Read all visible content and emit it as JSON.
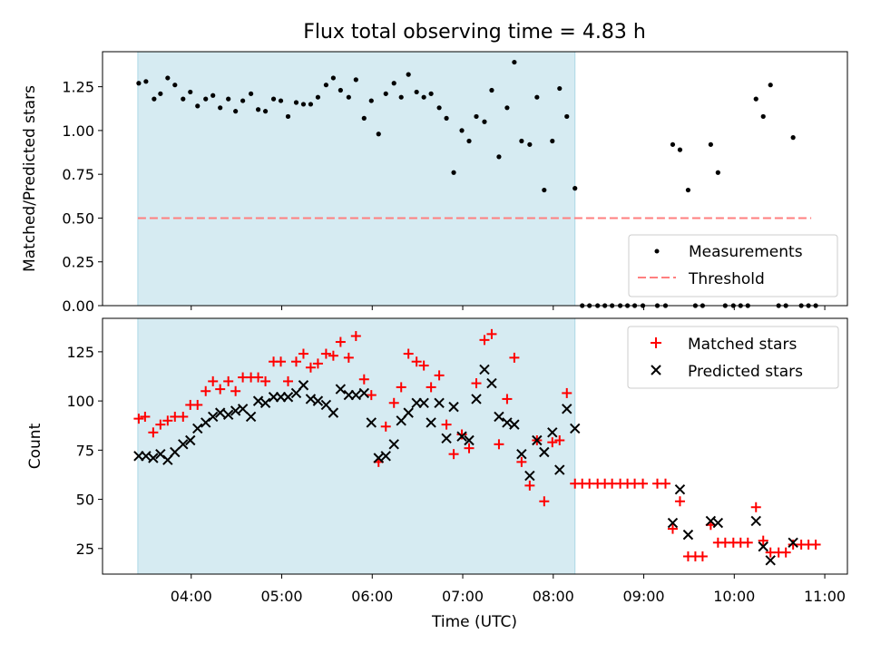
{
  "figure": {
    "title": "Flux total observing time = 4.83 h",
    "xlabel": "Time (UTC)",
    "x_ticks": [
      {
        "value": 4,
        "label": "04:00"
      },
      {
        "value": 5,
        "label": "05:00"
      },
      {
        "value": 6,
        "label": "06:00"
      },
      {
        "value": 7,
        "label": "07:00"
      },
      {
        "value": 8,
        "label": "08:00"
      },
      {
        "value": 9,
        "label": "09:00"
      },
      {
        "value": 10,
        "label": "10:00"
      },
      {
        "value": 11,
        "label": "11:00"
      }
    ],
    "colors": {
      "shade": "#add8e6",
      "threshold": "#ff7f7f",
      "matched": "#ff0000",
      "predicted": "#000000",
      "measurements": "#000000"
    }
  },
  "chart_data": [
    {
      "type": "scatter",
      "panel": "top",
      "ylabel": "Matched/Predicted stars",
      "xlim": [
        3.02,
        11.25
      ],
      "ylim": [
        0,
        1.45
      ],
      "y_ticks": [
        "0.00",
        "0.25",
        "0.50",
        "0.75",
        "1.00",
        "1.25"
      ],
      "shaded_span": [
        3.41,
        8.24
      ],
      "threshold": {
        "value": 0.5,
        "x_range": [
          3.41,
          10.85
        ]
      },
      "legend": {
        "position": "lower-right",
        "entries": [
          "Measurements",
          "Threshold"
        ]
      },
      "series": [
        {
          "name": "Measurements",
          "marker": "dot",
          "points": [
            [
              3.42,
              1.27
            ],
            [
              3.5,
              1.28
            ],
            [
              3.59,
              1.18
            ],
            [
              3.66,
              1.21
            ],
            [
              3.74,
              1.3
            ],
            [
              3.82,
              1.26
            ],
            [
              3.91,
              1.18
            ],
            [
              3.99,
              1.22
            ],
            [
              4.07,
              1.14
            ],
            [
              4.16,
              1.18
            ],
            [
              4.24,
              1.2
            ],
            [
              4.32,
              1.13
            ],
            [
              4.41,
              1.18
            ],
            [
              4.49,
              1.11
            ],
            [
              4.57,
              1.17
            ],
            [
              4.66,
              1.21
            ],
            [
              4.74,
              1.12
            ],
            [
              4.82,
              1.11
            ],
            [
              4.91,
              1.18
            ],
            [
              4.99,
              1.17
            ],
            [
              5.07,
              1.08
            ],
            [
              5.16,
              1.16
            ],
            [
              5.24,
              1.15
            ],
            [
              5.32,
              1.15
            ],
            [
              5.4,
              1.19
            ],
            [
              5.49,
              1.26
            ],
            [
              5.57,
              1.3
            ],
            [
              5.65,
              1.23
            ],
            [
              5.74,
              1.19
            ],
            [
              5.82,
              1.29
            ],
            [
              5.91,
              1.07
            ],
            [
              5.99,
              1.17
            ],
            [
              6.07,
              0.98
            ],
            [
              6.15,
              1.21
            ],
            [
              6.24,
              1.27
            ],
            [
              6.32,
              1.19
            ],
            [
              6.4,
              1.32
            ],
            [
              6.49,
              1.22
            ],
            [
              6.57,
              1.19
            ],
            [
              6.65,
              1.21
            ],
            [
              6.74,
              1.13
            ],
            [
              6.82,
              1.07
            ],
            [
              6.9,
              0.76
            ],
            [
              6.99,
              1.0
            ],
            [
              7.07,
              0.94
            ],
            [
              7.15,
              1.08
            ],
            [
              7.24,
              1.05
            ],
            [
              7.32,
              1.23
            ],
            [
              7.4,
              0.85
            ],
            [
              7.49,
              1.13
            ],
            [
              7.57,
              1.39
            ],
            [
              7.65,
              0.94
            ],
            [
              7.74,
              0.92
            ],
            [
              7.82,
              1.19
            ],
            [
              7.9,
              0.66
            ],
            [
              7.99,
              0.94
            ],
            [
              8.07,
              1.24
            ],
            [
              8.15,
              1.08
            ],
            [
              8.24,
              0.67
            ],
            [
              8.32,
              0
            ],
            [
              8.4,
              0
            ],
            [
              8.49,
              0
            ],
            [
              8.57,
              0
            ],
            [
              8.65,
              0
            ],
            [
              8.74,
              0
            ],
            [
              8.82,
              0
            ],
            [
              8.9,
              0
            ],
            [
              8.99,
              0
            ],
            [
              9.15,
              0
            ],
            [
              9.24,
              0
            ],
            [
              9.32,
              0.92
            ],
            [
              9.4,
              0.89
            ],
            [
              9.49,
              0.66
            ],
            [
              9.57,
              0
            ],
            [
              9.65,
              0
            ],
            [
              9.74,
              0.92
            ],
            [
              9.82,
              0.76
            ],
            [
              9.9,
              0
            ],
            [
              9.99,
              0
            ],
            [
              10.07,
              0
            ],
            [
              10.15,
              0
            ],
            [
              10.24,
              1.18
            ],
            [
              10.32,
              1.08
            ],
            [
              10.4,
              1.26
            ],
            [
              10.49,
              0
            ],
            [
              10.57,
              0
            ],
            [
              10.65,
              0.96
            ],
            [
              10.74,
              0
            ],
            [
              10.82,
              0
            ],
            [
              10.9,
              0
            ]
          ]
        }
      ]
    },
    {
      "type": "scatter",
      "panel": "bottom",
      "ylabel": "Count",
      "xlim": [
        3.02,
        11.25
      ],
      "ylim": [
        12,
        142
      ],
      "y_ticks": [
        "25",
        "50",
        "75",
        "100",
        "125"
      ],
      "shaded_span": [
        3.41,
        8.24
      ],
      "legend": {
        "position": "upper-right",
        "entries": [
          "Matched stars",
          "Predicted stars"
        ]
      },
      "series": [
        {
          "name": "Matched stars",
          "marker": "plus",
          "points": [
            [
              3.42,
              91
            ],
            [
              3.49,
              92
            ],
            [
              3.58,
              84
            ],
            [
              3.66,
              88
            ],
            [
              3.74,
              90
            ],
            [
              3.82,
              92
            ],
            [
              3.91,
              92
            ],
            [
              3.99,
              98
            ],
            [
              4.07,
              98
            ],
            [
              4.16,
              105
            ],
            [
              4.24,
              110
            ],
            [
              4.32,
              106
            ],
            [
              4.41,
              110
            ],
            [
              4.49,
              105
            ],
            [
              4.57,
              112
            ],
            [
              4.66,
              112
            ],
            [
              4.74,
              112
            ],
            [
              4.82,
              110
            ],
            [
              4.91,
              120
            ],
            [
              4.99,
              120
            ],
            [
              5.07,
              110
            ],
            [
              5.16,
              120
            ],
            [
              5.24,
              124
            ],
            [
              5.32,
              117
            ],
            [
              5.4,
              119
            ],
            [
              5.49,
              124
            ],
            [
              5.57,
              123
            ],
            [
              5.65,
              130
            ],
            [
              5.74,
              122
            ],
            [
              5.82,
              133
            ],
            [
              5.91,
              111
            ],
            [
              5.99,
              103
            ],
            [
              6.07,
              69
            ],
            [
              6.15,
              87
            ],
            [
              6.24,
              99
            ],
            [
              6.32,
              107
            ],
            [
              6.4,
              124
            ],
            [
              6.49,
              120
            ],
            [
              6.57,
              118
            ],
            [
              6.65,
              107
            ],
            [
              6.74,
              113
            ],
            [
              6.82,
              88
            ],
            [
              6.9,
              73
            ],
            [
              6.99,
              83
            ],
            [
              7.07,
              76
            ],
            [
              7.15,
              109
            ],
            [
              7.24,
              131
            ],
            [
              7.32,
              134
            ],
            [
              7.4,
              78
            ],
            [
              7.49,
              101
            ],
            [
              7.57,
              122
            ],
            [
              7.65,
              69
            ],
            [
              7.74,
              57
            ],
            [
              7.82,
              80
            ],
            [
              7.9,
              49
            ],
            [
              7.99,
              79
            ],
            [
              8.07,
              80
            ],
            [
              8.15,
              104
            ],
            [
              8.24,
              58
            ],
            [
              8.32,
              58
            ],
            [
              8.4,
              58
            ],
            [
              8.49,
              58
            ],
            [
              8.57,
              58
            ],
            [
              8.65,
              58
            ],
            [
              8.74,
              58
            ],
            [
              8.82,
              58
            ],
            [
              8.9,
              58
            ],
            [
              8.99,
              58
            ],
            [
              9.15,
              58
            ],
            [
              9.24,
              58
            ],
            [
              9.32,
              35
            ],
            [
              9.4,
              49
            ],
            [
              9.49,
              21
            ],
            [
              9.57,
              21
            ],
            [
              9.65,
              21
            ],
            [
              9.74,
              37
            ],
            [
              9.82,
              28
            ],
            [
              9.9,
              28
            ],
            [
              9.99,
              28
            ],
            [
              10.07,
              28
            ],
            [
              10.15,
              28
            ],
            [
              10.24,
              46
            ],
            [
              10.32,
              29
            ],
            [
              10.4,
              23
            ],
            [
              10.49,
              23
            ],
            [
              10.57,
              23
            ],
            [
              10.65,
              27
            ],
            [
              10.74,
              27
            ],
            [
              10.82,
              27
            ],
            [
              10.9,
              27
            ]
          ]
        },
        {
          "name": "Predicted stars",
          "marker": "x",
          "points": [
            [
              3.42,
              72
            ],
            [
              3.5,
              72
            ],
            [
              3.58,
              71
            ],
            [
              3.66,
              73
            ],
            [
              3.74,
              70
            ],
            [
              3.82,
              74
            ],
            [
              3.91,
              78
            ],
            [
              3.99,
              80
            ],
            [
              4.07,
              86
            ],
            [
              4.16,
              89
            ],
            [
              4.24,
              92
            ],
            [
              4.32,
              94
            ],
            [
              4.41,
              93
            ],
            [
              4.49,
              95
            ],
            [
              4.57,
              96
            ],
            [
              4.66,
              92
            ],
            [
              4.74,
              100
            ],
            [
              4.82,
              99
            ],
            [
              4.91,
              102
            ],
            [
              4.99,
              102
            ],
            [
              5.07,
              102
            ],
            [
              5.16,
              104
            ],
            [
              5.24,
              108
            ],
            [
              5.32,
              101
            ],
            [
              5.4,
              100
            ],
            [
              5.49,
              98
            ],
            [
              5.57,
              94
            ],
            [
              5.65,
              106
            ],
            [
              5.74,
              103
            ],
            [
              5.82,
              103
            ],
            [
              5.91,
              104
            ],
            [
              5.99,
              89
            ],
            [
              6.07,
              71
            ],
            [
              6.15,
              72
            ],
            [
              6.24,
              78
            ],
            [
              6.32,
              90
            ],
            [
              6.4,
              94
            ],
            [
              6.49,
              99
            ],
            [
              6.57,
              99
            ],
            [
              6.65,
              89
            ],
            [
              6.74,
              99
            ],
            [
              6.82,
              81
            ],
            [
              6.9,
              97
            ],
            [
              6.99,
              82
            ],
            [
              7.07,
              80
            ],
            [
              7.15,
              101
            ],
            [
              7.24,
              116
            ],
            [
              7.32,
              109
            ],
            [
              7.4,
              92
            ],
            [
              7.49,
              89
            ],
            [
              7.57,
              88
            ],
            [
              7.65,
              73
            ],
            [
              7.74,
              62
            ],
            [
              7.82,
              80
            ],
            [
              7.9,
              74
            ],
            [
              7.99,
              84
            ],
            [
              8.07,
              65
            ],
            [
              8.15,
              96
            ],
            [
              8.24,
              86
            ],
            [
              9.32,
              38
            ],
            [
              9.4,
              55
            ],
            [
              9.49,
              32
            ],
            [
              9.74,
              39
            ],
            [
              9.82,
              38
            ],
            [
              10.24,
              39
            ],
            [
              10.32,
              26
            ],
            [
              10.4,
              19
            ],
            [
              10.65,
              28
            ]
          ]
        }
      ]
    }
  ]
}
